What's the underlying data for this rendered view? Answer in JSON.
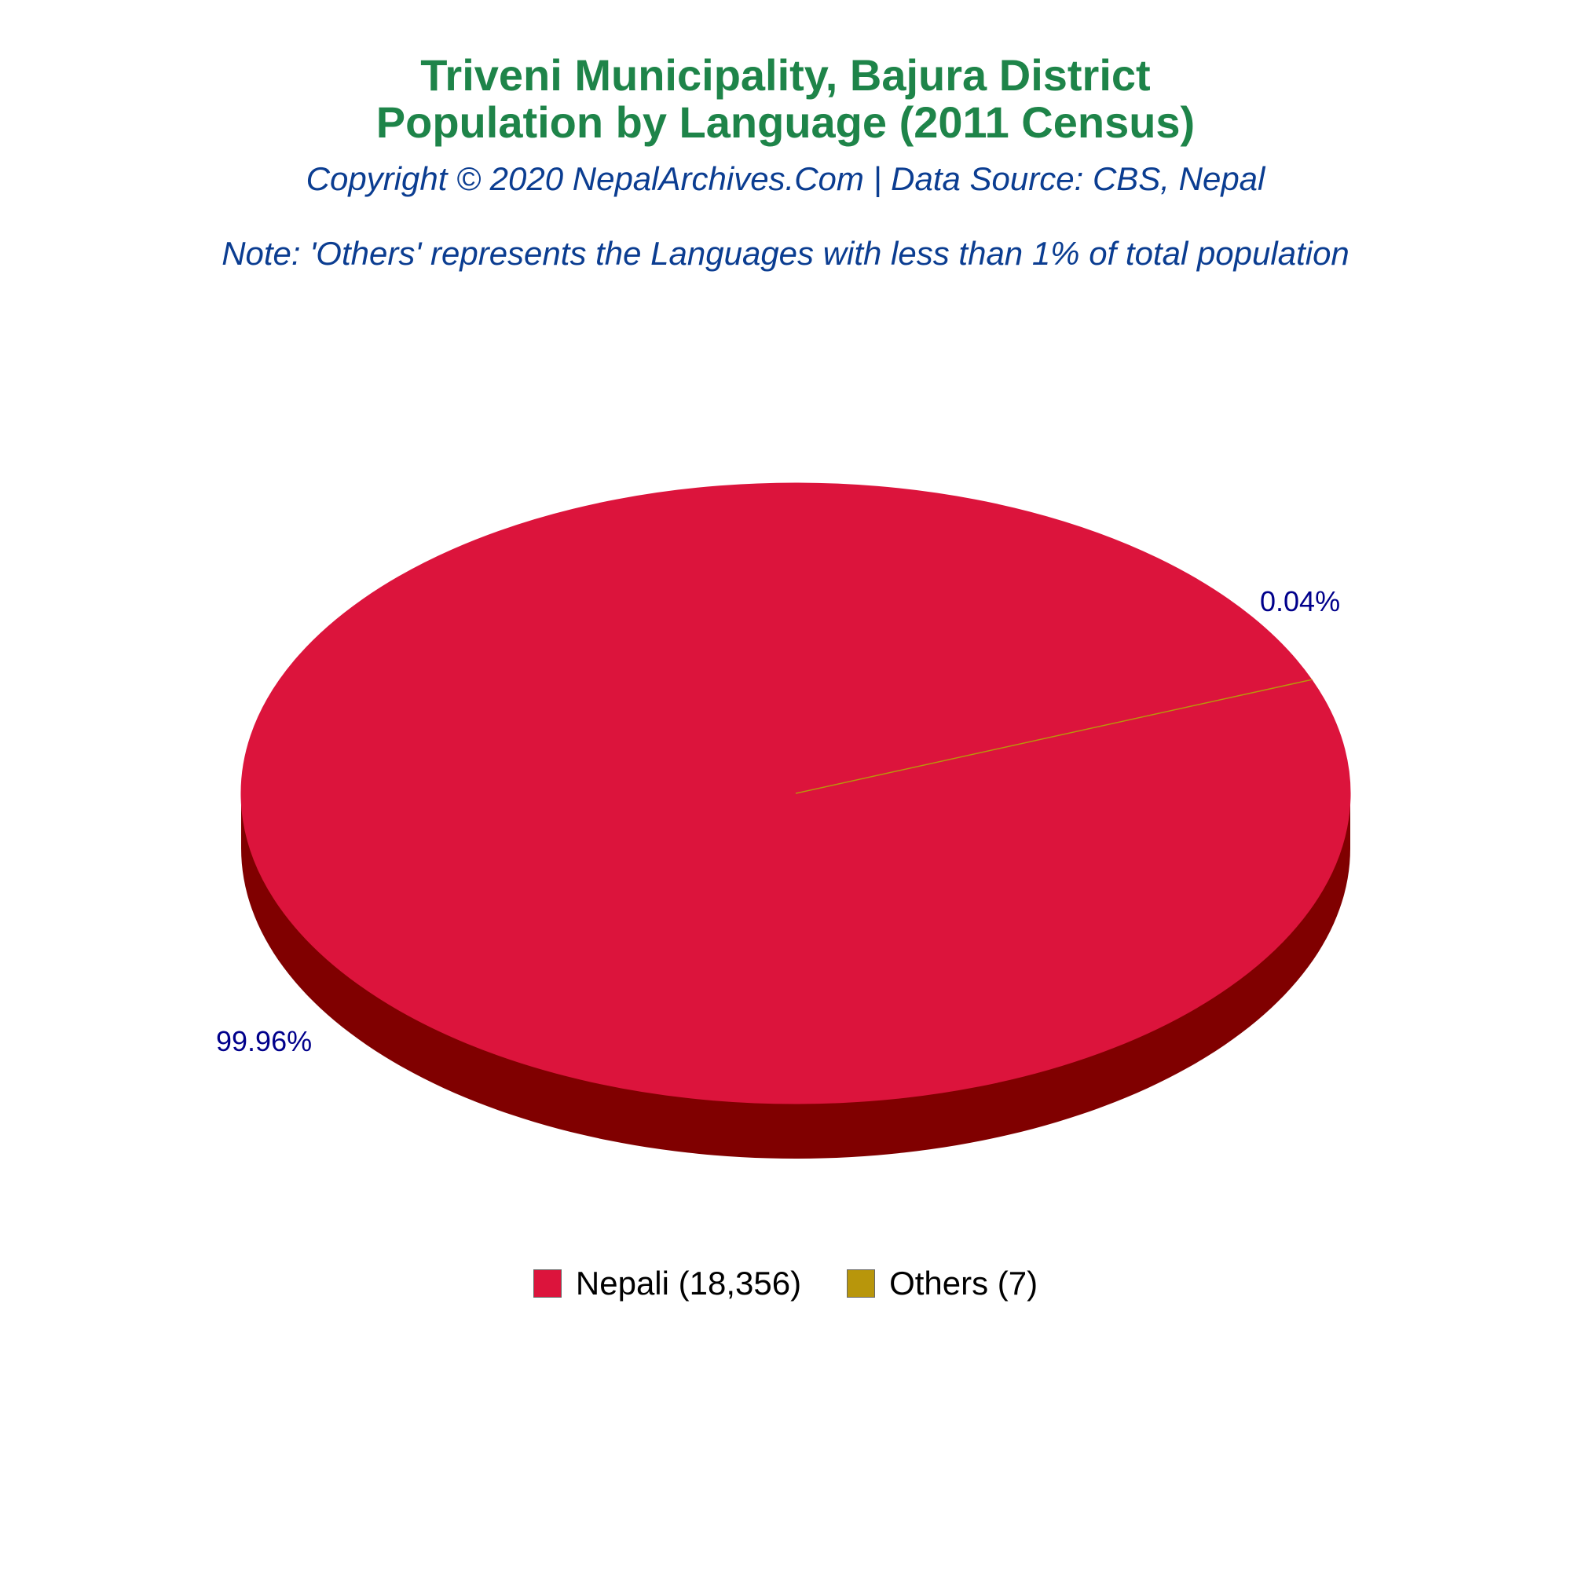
{
  "title_lines": [
    "Triveni Municipality, Bajura District",
    "Population by Language (2011 Census)"
  ],
  "copyright": "Copyright © 2020 NepalArchives.Com | Data Source: CBS, Nepal",
  "note": "Note: 'Others' represents the Languages with less than 1% of total population",
  "colors": {
    "title": "#1e8449",
    "subtitle": "#0b3d91",
    "slice_label": "#00008b",
    "side_shadow": "#800000"
  },
  "chart_data": {
    "type": "pie",
    "style": "3d",
    "categories": [
      "Nepali",
      "Others"
    ],
    "values": [
      18356,
      7
    ],
    "percent_labels": [
      "99.96%",
      "0.04%"
    ],
    "legend_labels": [
      "Nepali (18,356)",
      "Others (7)"
    ],
    "colors": [
      "#dc143c",
      "#b8960b"
    ],
    "legend_position": "bottom"
  }
}
